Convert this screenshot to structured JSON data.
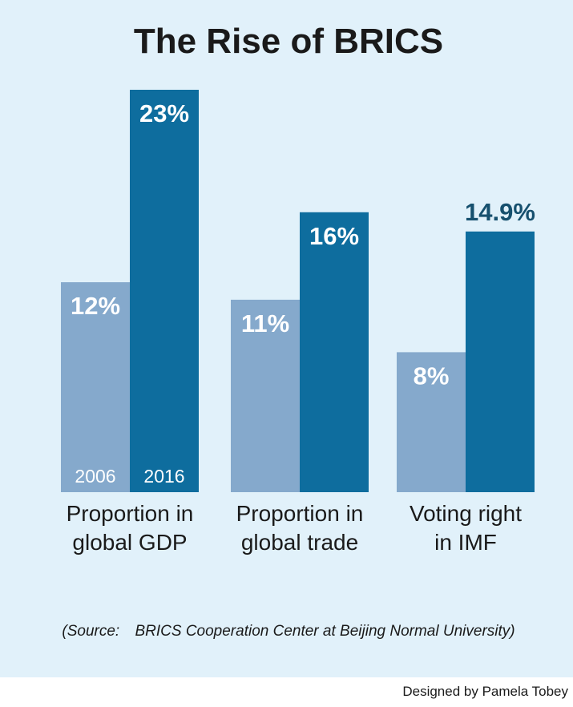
{
  "chart_data": {
    "type": "bar",
    "title": "The Rise of BRICS",
    "categories": [
      [
        "Proportion in",
        "global GDP"
      ],
      [
        "Proportion in",
        "global trade"
      ],
      [
        "Voting right",
        "in IMF"
      ]
    ],
    "series": [
      {
        "name": "2006",
        "values": [
          12,
          11,
          8
        ],
        "value_labels": [
          "12%",
          "11%",
          "8%"
        ],
        "color": "#85a9cc"
      },
      {
        "name": "2016",
        "values": [
          23,
          16,
          14.9
        ],
        "value_labels": [
          "23%",
          "16%",
          "14.9%"
        ],
        "color": "#0e6d9e"
      }
    ],
    "ylim": [
      0,
      23
    ]
  },
  "source": {
    "prefix": "(Source:",
    "text": "BRICS Cooperation Center at Beijing Normal University)"
  },
  "credit": "Designed by Pamela Tobey"
}
